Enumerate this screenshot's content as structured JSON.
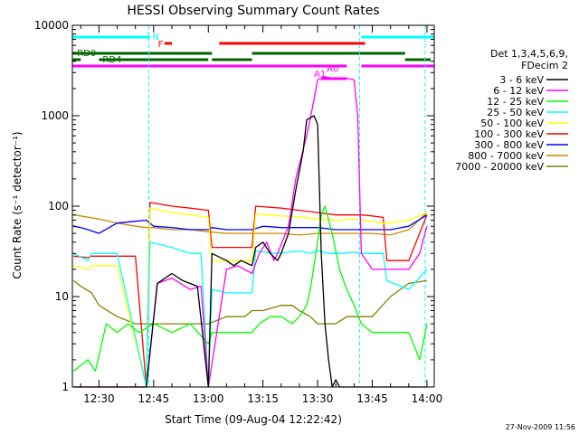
{
  "chart_data": {
    "type": "line",
    "title": "HESSI Observing Summary Count Rates",
    "xlabel": "Start Time (09-Aug-04 12:22:42)",
    "ylabel": "Count Rate (s⁻¹ detector⁻¹)",
    "x_ticks": [
      "12:30",
      "12:45",
      "13:00",
      "13:15",
      "13:30",
      "13:45",
      "14:00"
    ],
    "y_ticks": [
      "1",
      "10",
      "100",
      "1000",
      "10000"
    ],
    "y_scale": "log",
    "xlim": [
      "12:22:42",
      "14:02"
    ],
    "ylim": [
      1,
      10000
    ],
    "legend_header": [
      "Det 1,3,4,5,6,9,",
      "FDecim 2"
    ],
    "footer": "27-Nov-2009 11:56",
    "flag_labels": {
      "night": "N",
      "flare": "F",
      "rd0": "RD0",
      "rd4": "RD4",
      "a1": "A1",
      "a0": "A0"
    },
    "series": [
      {
        "name": "3 - 6 keV",
        "color": "#000000",
        "x": [
          "12:23",
          "12:35",
          "12:36",
          "12:38",
          "12:43",
          "12:46",
          "12:50",
          "12:53",
          "12:57",
          "13:00",
          "13:01",
          "13:05",
          "13:07",
          "13:09",
          "13:12",
          "13:13",
          "13:15",
          "13:17",
          "13:19",
          "13:20",
          "13:22",
          "13:24",
          "13:26",
          "13:27",
          "13:29",
          "13:30",
          "13:31",
          "13:32",
          "13:33",
          "13:34",
          "13:35",
          "13:36",
          "13:37",
          "13:38",
          "13:39",
          "13:40",
          "13:41",
          "13:42",
          "13:42",
          "13:50",
          "13:55",
          "14:00"
        ],
        "values": [
          1,
          1,
          1,
          1,
          1,
          14,
          18,
          15,
          13,
          1,
          30,
          25,
          22,
          25,
          22,
          35,
          40,
          30,
          25,
          30,
          50,
          150,
          400,
          900,
          1000,
          800,
          30,
          5,
          2,
          1,
          1.2,
          1,
          1,
          1,
          1,
          1,
          1,
          1,
          1,
          1,
          1,
          1
        ]
      },
      {
        "name": "6 - 12 keV",
        "color": "#ff00ff",
        "x": [
          "12:23",
          "12:35",
          "12:36",
          "12:40",
          "12:43",
          "12:46",
          "12:50",
          "12:55",
          "12:58",
          "13:00",
          "13:05",
          "13:08",
          "13:12",
          "13:14",
          "13:16",
          "13:18",
          "13:19",
          "13:22",
          "13:24",
          "13:27",
          "13:29",
          "13:30",
          "13:31",
          "13:32",
          "13:34",
          "13:36",
          "13:38",
          "13:40",
          "13:41",
          "13:42",
          "13:45",
          "13:50",
          "13:55",
          "13:58",
          "14:00"
        ],
        "values": [
          1,
          1,
          1,
          1,
          1,
          14,
          16,
          12,
          13,
          1,
          20,
          22,
          18,
          30,
          40,
          25,
          30,
          60,
          200,
          600,
          1500,
          2500,
          2600,
          2700,
          2600,
          2600,
          2600,
          2500,
          1000,
          30,
          20,
          20,
          20,
          30,
          60
        ]
      },
      {
        "name": "12 - 25 keV",
        "color": "#00ff00",
        "x": [
          "12:23",
          "12:27",
          "12:29",
          "12:32",
          "12:35",
          "12:38",
          "12:41",
          "12:45",
          "12:50",
          "12:55",
          "13:00",
          "13:01",
          "13:05",
          "13:10",
          "13:12",
          "13:14",
          "13:17",
          "13:20",
          "13:23",
          "13:25",
          "13:27",
          "13:28",
          "13:30",
          "13:31",
          "13:32",
          "13:34",
          "13:36",
          "13:38",
          "13:40",
          "13:42",
          "13:45",
          "13:50",
          "13:55",
          "13:58",
          "14:00"
        ],
        "values": [
          1.5,
          2,
          1.5,
          5,
          4,
          5,
          4,
          5,
          4,
          5,
          3,
          4,
          4,
          4,
          4,
          5,
          6,
          6,
          5,
          6,
          8,
          12,
          40,
          80,
          100,
          50,
          20,
          12,
          8,
          5,
          4,
          4,
          4,
          2,
          5
        ]
      },
      {
        "name": "25 - 50 keV",
        "color": "#00ffff",
        "x": [
          "12:23",
          "12:27",
          "12:28",
          "12:35",
          "12:43",
          "12:44",
          "12:50",
          "12:55",
          "12:58",
          "13:00",
          "13:01",
          "13:05",
          "13:08",
          "13:12",
          "13:13",
          "13:18",
          "13:22",
          "13:25",
          "13:28",
          "13:30",
          "13:33",
          "13:36",
          "13:40",
          "13:42",
          "13:48",
          "13:49",
          "13:55",
          "14:00"
        ],
        "values": [
          30,
          25,
          30,
          30,
          1,
          40,
          35,
          30,
          30,
          1,
          12,
          11,
          11,
          11,
          32,
          30,
          31,
          32,
          30,
          32,
          30,
          30,
          31,
          30,
          30,
          15,
          12,
          20
        ]
      },
      {
        "name": "50 - 100 keV",
        "color": "#ffff00",
        "x": [
          "12:23",
          "12:27",
          "12:28",
          "12:35",
          "12:43",
          "12:44",
          "12:50",
          "12:55",
          "13:00",
          "13:01",
          "13:05",
          "13:10",
          "13:12",
          "13:13",
          "13:20",
          "13:25",
          "13:30",
          "13:35",
          "13:40",
          "13:42",
          "13:48",
          "13:49",
          "13:55",
          "14:00"
        ],
        "values": [
          22,
          20,
          22,
          22,
          1,
          95,
          85,
          80,
          75,
          25,
          25,
          25,
          25,
          82,
          78,
          76,
          72,
          70,
          72,
          70,
          65,
          65,
          70,
          85
        ]
      },
      {
        "name": "100 - 300 keV",
        "color": "#ff0000",
        "x": [
          "12:23",
          "12:27",
          "12:28",
          "12:35",
          "12:40",
          "12:43",
          "12:44",
          "12:50",
          "12:55",
          "13:00",
          "13:01",
          "13:05",
          "13:12",
          "13:13",
          "13:20",
          "13:25",
          "13:30",
          "13:35",
          "13:40",
          "13:42",
          "13:45",
          "13:48",
          "13:49",
          "13:55",
          "14:00"
        ],
        "values": [
          28,
          27,
          28,
          28,
          28,
          1,
          110,
          100,
          95,
          90,
          35,
          35,
          35,
          100,
          95,
          90,
          85,
          80,
          80,
          80,
          78,
          75,
          25,
          25,
          80
        ]
      },
      {
        "name": "300 - 800 keV",
        "color": "#0000ff",
        "x": [
          "12:23",
          "12:25",
          "12:27",
          "12:30",
          "12:35",
          "12:40",
          "12:43",
          "12:45",
          "12:50",
          "12:55",
          "13:00",
          "13:01",
          "13:05",
          "13:10",
          "13:12",
          "13:15",
          "13:20",
          "13:25",
          "13:30",
          "13:35",
          "13:40",
          "13:45",
          "13:50",
          "13:55",
          "14:00"
        ],
        "values": [
          60,
          58,
          55,
          50,
          65,
          68,
          70,
          60,
          58,
          55,
          55,
          58,
          55,
          55,
          55,
          60,
          58,
          58,
          58,
          55,
          55,
          55,
          55,
          60,
          80
        ]
      },
      {
        "name": "800 - 7000 keV",
        "color": "#cc8800",
        "x": [
          "12:23",
          "12:25",
          "12:30",
          "12:35",
          "12:40",
          "12:43",
          "12:45",
          "12:50",
          "12:55",
          "13:00",
          "13:05",
          "13:10",
          "13:15",
          "13:20",
          "13:25",
          "13:30",
          "13:35",
          "13:40",
          "13:45",
          "13:50",
          "13:55",
          "14:00"
        ],
        "values": [
          80,
          78,
          72,
          65,
          60,
          58,
          58,
          55,
          55,
          52,
          50,
          50,
          50,
          50,
          48,
          50,
          50,
          50,
          50,
          48,
          55,
          85
        ]
      },
      {
        "name": "7000 - 20000 keV",
        "color": "#808000",
        "x": [
          "12:23",
          "12:25",
          "12:28",
          "12:30",
          "12:35",
          "12:40",
          "12:45",
          "12:50",
          "12:55",
          "13:00",
          "13:05",
          "13:10",
          "13:12",
          "13:15",
          "13:20",
          "13:23",
          "13:25",
          "13:28",
          "13:30",
          "13:32",
          "13:35",
          "13:38",
          "13:40",
          "13:45",
          "13:50",
          "13:55",
          "14:00"
        ],
        "values": [
          15,
          13,
          11,
          8,
          6,
          5,
          5,
          5,
          5,
          5,
          6,
          6,
          7,
          7,
          8,
          8,
          7,
          6,
          5,
          5,
          5,
          6,
          6,
          6,
          10,
          14,
          15
        ]
      }
    ]
  }
}
